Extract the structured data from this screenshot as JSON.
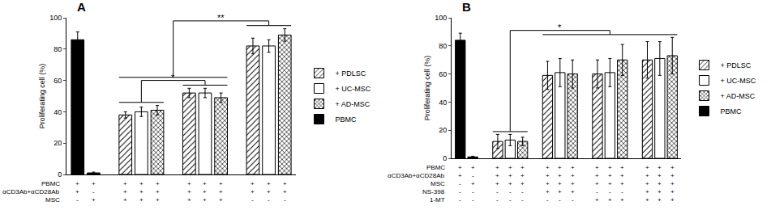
{
  "chart_data": [
    {
      "type": "bar",
      "title": "A",
      "y_label": "Proliferating cell (%)",
      "categories": [
        null,
        null,
        null,
        null,
        null,
        null,
        null,
        null,
        null,
        null,
        null,
        null,
        null,
        null
      ],
      "series": [
        {
          "name": "+ PDLSC",
          "color": "#ffffff",
          "marker": "hatch",
          "values": [
            null,
            null,
            null,
            38,
            null,
            null,
            null,
            52,
            null,
            null,
            null,
            82,
            null,
            null
          ],
          "errors": [
            null,
            null,
            null,
            2,
            null,
            null,
            null,
            3,
            null,
            null,
            null,
            5,
            null,
            null
          ]
        },
        {
          "name": "+ UC-MSC",
          "color": "#ffffff",
          "marker": "solid",
          "values": [
            null,
            null,
            null,
            null,
            40,
            null,
            null,
            null,
            52,
            null,
            null,
            null,
            82,
            null
          ],
          "errors": [
            null,
            null,
            null,
            null,
            3,
            null,
            null,
            null,
            3,
            null,
            null,
            null,
            4,
            null
          ]
        },
        {
          "name": "+ AD-MSC",
          "color": "#ffffff",
          "marker": "checker",
          "values": [
            null,
            null,
            null,
            null,
            null,
            41,
            null,
            null,
            null,
            49,
            null,
            null,
            null,
            89
          ],
          "errors": [
            null,
            null,
            null,
            null,
            null,
            3,
            null,
            null,
            null,
            3,
            null,
            null,
            null,
            4
          ]
        },
        {
          "name": "PBMC",
          "color": "#000000",
          "marker": "solid",
          "values": [
            86,
            1,
            null,
            null,
            null,
            null,
            null,
            null,
            null,
            null,
            null,
            null,
            null,
            null
          ],
          "errors": [
            5,
            0.5,
            null,
            null,
            null,
            null,
            null,
            null,
            null,
            null,
            null,
            null,
            null,
            null
          ]
        }
      ],
      "conditions": [
        {
          "label": "PBMC",
          "values": [
            "+",
            "+",
            null,
            "+",
            "+",
            "+",
            null,
            "+",
            "+",
            "+",
            null,
            "+",
            "+",
            "+"
          ]
        },
        {
          "label": "αCD3Ab+αCD28Ab",
          "values": [
            "+",
            "-",
            null,
            "+",
            "+",
            "+",
            null,
            "+",
            "+",
            "+",
            null,
            "+",
            "+",
            "+"
          ]
        },
        {
          "label": "MSC",
          "values": [
            "-",
            "+",
            null,
            "+",
            "+",
            "+",
            null,
            "+",
            "+",
            "+",
            null,
            "-",
            "-",
            "-"
          ]
        }
      ],
      "significance": [
        {
          "label": "*",
          "left": [
            3,
            5
          ],
          "right": [
            7,
            9
          ]
        },
        {
          "label": "**",
          "left": [
            3,
            9
          ],
          "right": [
            11,
            13
          ]
        }
      ],
      "ylim": [
        0,
        100
      ],
      "yticks": [
        0,
        20,
        40,
        60,
        80,
        100
      ],
      "grid": false,
      "legend": "right",
      "tick_labels": "y"
    },
    {
      "type": "bar",
      "title": "B",
      "y_label": "Proliferating cell (%)",
      "categories": [
        null,
        null,
        null,
        null,
        null,
        null,
        null,
        null,
        null,
        null,
        null,
        null,
        null,
        null,
        null,
        null,
        null,
        null
      ],
      "series": [
        {
          "name": "+ PDLSC",
          "color": "#ffffff",
          "marker": "hatch",
          "values": [
            null,
            null,
            null,
            12,
            null,
            null,
            null,
            59,
            null,
            null,
            null,
            60,
            null,
            null,
            null,
            70,
            null,
            null
          ],
          "errors": [
            null,
            null,
            null,
            5,
            null,
            null,
            null,
            10,
            null,
            null,
            null,
            10,
            null,
            null,
            null,
            13,
            null,
            null
          ]
        },
        {
          "name": "+ UC-MSC",
          "color": "#ffffff",
          "marker": "solid",
          "values": [
            null,
            null,
            null,
            null,
            13,
            null,
            null,
            null,
            61,
            null,
            null,
            null,
            61,
            null,
            null,
            null,
            71,
            null
          ],
          "errors": [
            null,
            null,
            null,
            null,
            4,
            null,
            null,
            null,
            10,
            null,
            null,
            null,
            10,
            null,
            null,
            null,
            12,
            null
          ]
        },
        {
          "name": "+ AD-MSC",
          "color": "#ffffff",
          "marker": "checker",
          "values": [
            null,
            null,
            null,
            null,
            null,
            12,
            null,
            null,
            null,
            60,
            null,
            null,
            null,
            70,
            null,
            null,
            null,
            73
          ],
          "errors": [
            null,
            null,
            null,
            null,
            null,
            3,
            null,
            null,
            null,
            10,
            null,
            null,
            null,
            11,
            null,
            null,
            null,
            13
          ]
        },
        {
          "name": "PBMC",
          "color": "#000000",
          "marker": "solid",
          "values": [
            84,
            1,
            null,
            null,
            null,
            null,
            null,
            null,
            null,
            null,
            null,
            null,
            null,
            null,
            null,
            null,
            null,
            null
          ],
          "errors": [
            5,
            0.5,
            null,
            null,
            null,
            null,
            null,
            null,
            null,
            null,
            null,
            null,
            null,
            null,
            null,
            null,
            null,
            null
          ]
        }
      ],
      "conditions": [
        {
          "label": "PBMC",
          "values": [
            "+",
            "+",
            null,
            "+",
            "+",
            "+",
            null,
            "+",
            "+",
            "+",
            null,
            "+",
            "+",
            "+",
            null,
            "+",
            "+",
            "+"
          ]
        },
        {
          "label": "αCD3Ab+αCD28Ab",
          "values": [
            "+",
            "-",
            null,
            "+",
            "+",
            "+",
            null,
            "+",
            "+",
            "+",
            null,
            "+",
            "+",
            "+",
            null,
            "+",
            "+",
            "+"
          ]
        },
        {
          "label": "MSC",
          "values": [
            "-",
            "+",
            null,
            "+",
            "+",
            "+",
            null,
            "+",
            "+",
            "+",
            null,
            "+",
            "+",
            "+",
            null,
            "+",
            "+",
            "+"
          ]
        },
        {
          "label": "NS-398",
          "values": [
            "-",
            "-",
            null,
            "-",
            "-",
            "-",
            null,
            "+",
            "+",
            "+",
            null,
            "-",
            "-",
            "-",
            null,
            "+",
            "+",
            "+"
          ]
        },
        {
          "label": "1-MT",
          "values": [
            "-",
            "-",
            null,
            "-",
            "-",
            "-",
            null,
            "-",
            "-",
            "-",
            null,
            "+",
            "+",
            "+",
            null,
            "+",
            "+",
            "+"
          ]
        }
      ],
      "significance": [
        {
          "label": "*",
          "left": [
            3,
            5
          ],
          "right": [
            7,
            17
          ]
        }
      ],
      "ylim": [
        0,
        100
      ],
      "yticks": [
        0,
        20,
        40,
        60,
        80,
        100
      ],
      "grid": false,
      "legend": "right",
      "tick_labels": "y"
    }
  ]
}
